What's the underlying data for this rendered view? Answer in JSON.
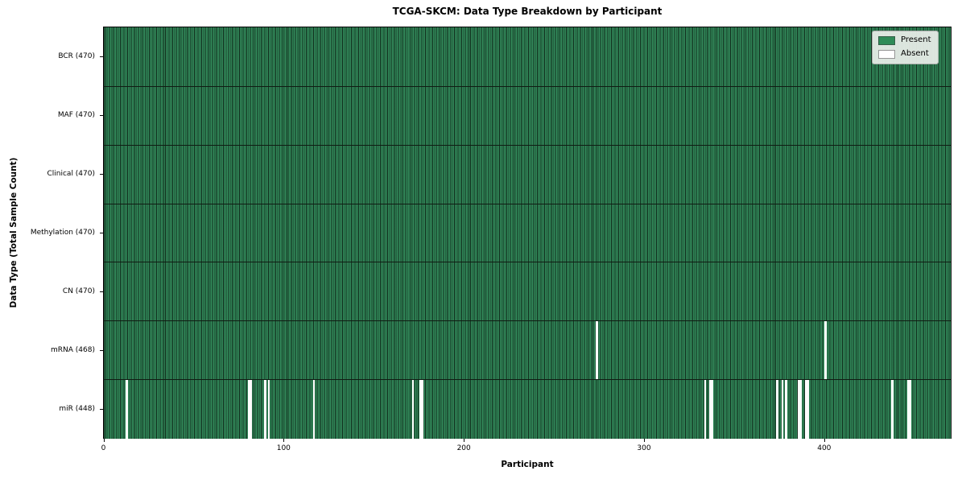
{
  "title": "TCGA-SKCM: Data Type Breakdown by Participant",
  "chart_data": {
    "type": "heatmap",
    "title": "TCGA-SKCM: Data Type Breakdown by Participant",
    "xlabel": "Participant",
    "ylabel": "Data Type (Total Sample Count)",
    "x_range": [
      0,
      470
    ],
    "x_ticks": [
      0,
      100,
      200,
      300,
      400
    ],
    "grid": false,
    "legend_position": "upper-right",
    "legend": [
      {
        "label": "Present",
        "color": "#2e8b57"
      },
      {
        "label": "Absent",
        "color": "#ffffff"
      }
    ],
    "total_participants": 470,
    "rows": [
      {
        "label": "BCR (470)",
        "data_type": "BCR",
        "present_count": 470,
        "absent_participants": []
      },
      {
        "label": "MAF (470)",
        "data_type": "MAF",
        "present_count": 470,
        "absent_participants": []
      },
      {
        "label": "Clinical (470)",
        "data_type": "Clinical",
        "present_count": 470,
        "absent_participants": []
      },
      {
        "label": "Methylation (470)",
        "data_type": "Methylation",
        "present_count": 470,
        "absent_participants": []
      },
      {
        "label": "CN (470)",
        "data_type": "CN",
        "present_count": 470,
        "absent_participants": []
      },
      {
        "label": "mRNA (468)",
        "data_type": "mRNA",
        "present_count": 468,
        "absent_participants": [
          273,
          400
        ]
      },
      {
        "label": "miR (448)",
        "data_type": "miR",
        "present_count": 448,
        "absent_participants": [
          12,
          80,
          81,
          89,
          91,
          116,
          171,
          175,
          176,
          333,
          336,
          337,
          373,
          376,
          378,
          385,
          386,
          389,
          390,
          437,
          446,
          447
        ]
      }
    ],
    "colors": {
      "present": "#2e8b57",
      "absent": "#ffffff",
      "cell_edge": "#0a1910",
      "legend_bg": "#e9eee9",
      "spine": "#0a0a0a"
    }
  }
}
